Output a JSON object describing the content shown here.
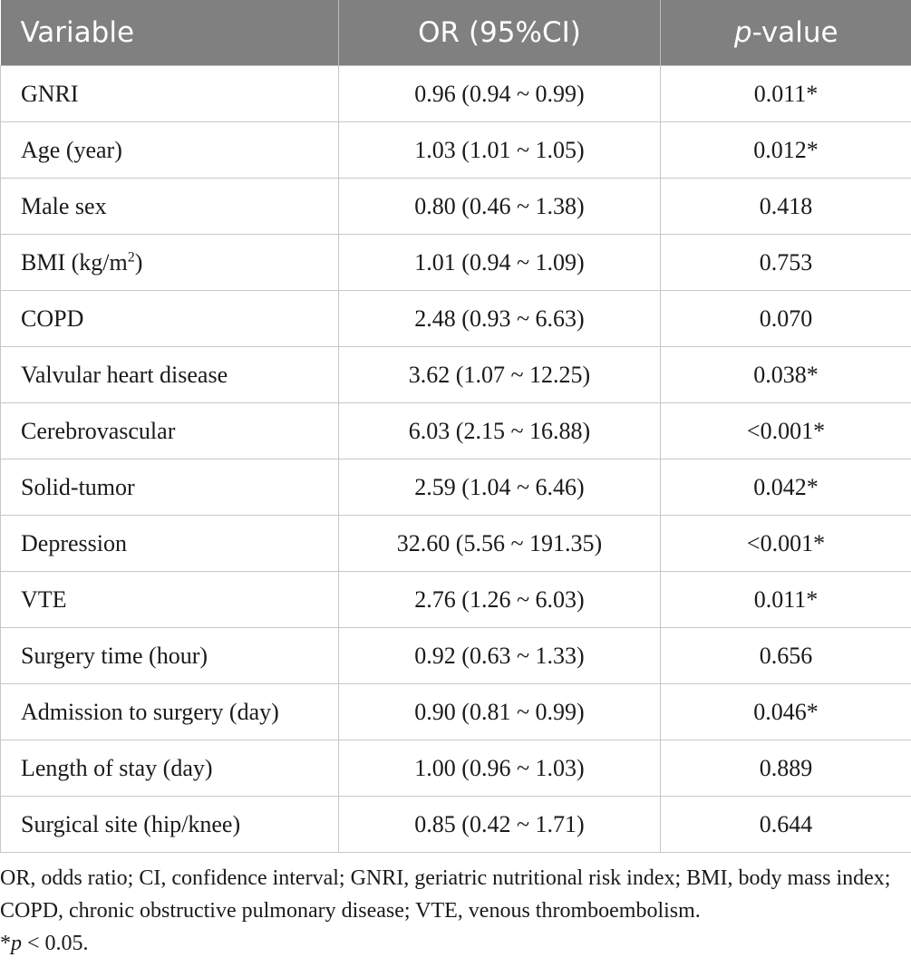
{
  "table": {
    "header": [
      "Variable",
      "OR (95%CI)",
      [
        {
          "text": "p",
          "style": "italic"
        },
        {
          "text": "-value"
        }
      ]
    ],
    "rows": [
      [
        "GNRI",
        "0.96 (0.94 ~ 0.99)",
        "0.011*"
      ],
      [
        "Age (year)",
        "1.03 (1.01 ~ 1.05)",
        "0.012*"
      ],
      [
        "Male sex",
        "0.80 (0.46 ~ 1.38)",
        "0.418"
      ],
      [
        [
          {
            "text": "BMI (kg/m"
          },
          {
            "text": "2",
            "style": "sup"
          },
          {
            "text": ")"
          }
        ],
        "1.01 (0.94 ~ 1.09)",
        "0.753"
      ],
      [
        "COPD",
        "2.48 (0.93 ~ 6.63)",
        "0.070"
      ],
      [
        "Valvular heart disease",
        "3.62 (1.07 ~ 12.25)",
        "0.038*"
      ],
      [
        "Cerebrovascular",
        "6.03 (2.15 ~ 16.88)",
        "<0.001*"
      ],
      [
        "Solid-tumor",
        "2.59 (1.04 ~ 6.46)",
        "0.042*"
      ],
      [
        "Depression",
        "32.60 (5.56 ~ 191.35)",
        "<0.001*"
      ],
      [
        "VTE",
        "2.76 (1.26 ~ 6.03)",
        "0.011*"
      ],
      [
        "Surgery time (hour)",
        "0.92 (0.63 ~ 1.33)",
        "0.656"
      ],
      [
        "Admission to surgery (day)",
        "0.90 (0.81 ~ 0.99)",
        "0.046*"
      ],
      [
        "Length of stay (day)",
        "1.00 (0.96 ~ 1.03)",
        "0.889"
      ],
      [
        "Surgical site (hip/knee)",
        "0.85 (0.42 ~ 1.71)",
        "0.644"
      ]
    ]
  },
  "footnote": [
    [
      {
        "text": "OR, odds ratio; CI, confidence interval; GNRI, geriatric nutritional risk index; BMI, body mass index; COPD, chronic obstructive pulmonary disease; VTE, venous thromboembolism."
      }
    ],
    [
      {
        "text": "*"
      },
      {
        "text": "p",
        "style": "italic"
      },
      {
        "text": " < 0.05."
      }
    ]
  ]
}
